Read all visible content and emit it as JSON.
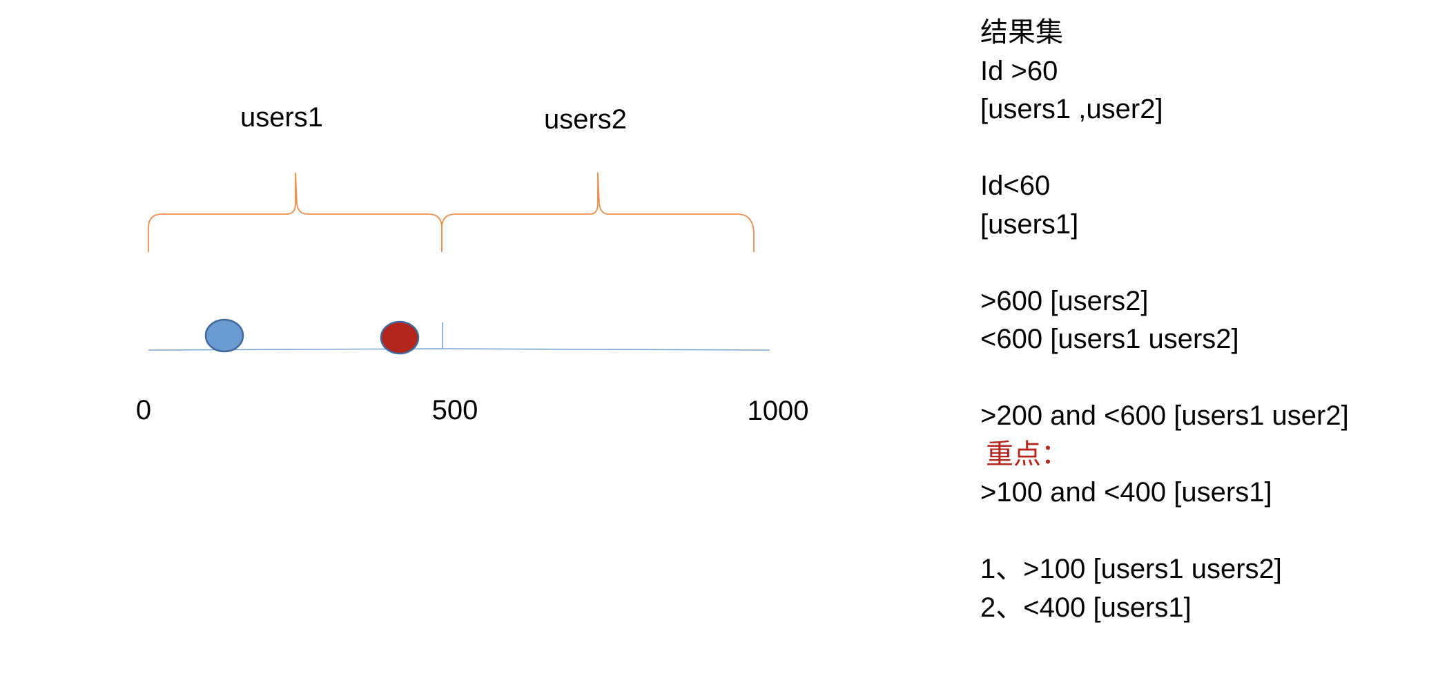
{
  "diagram": {
    "segments": [
      {
        "label": "users1",
        "start": 0,
        "end": 500
      },
      {
        "label": "users2",
        "start": 500,
        "end": 1000
      }
    ],
    "axis": {
      "ticks": [
        {
          "value": 0,
          "label": "0"
        },
        {
          "value": 500,
          "label": "500"
        },
        {
          "value": 1000,
          "label": "1000"
        }
      ]
    },
    "points": [
      {
        "name": "blue-point",
        "color": "#6a9bd1",
        "stroke": "#41699a"
      },
      {
        "name": "red-point",
        "color": "#b3251d",
        "stroke": "#41699a"
      }
    ],
    "colors": {
      "brace": "#ed8e4f",
      "axis": "#7aa5d4"
    }
  },
  "notes": {
    "lines": [
      {
        "text": "结果集",
        "style": "heading"
      },
      {
        "text": "Id >60",
        "style": "normal"
      },
      {
        "text": "[users1 ,user2]",
        "style": "normal"
      },
      {
        "text": "",
        "style": "blank"
      },
      {
        "text": "Id<60",
        "style": "normal"
      },
      {
        "text": "[users1]",
        "style": "normal"
      },
      {
        "text": "",
        "style": "blank"
      },
      {
        "text": ">600 [users2]",
        "style": "normal"
      },
      {
        "text": "<600 [users1 users2]",
        "style": "normal"
      },
      {
        "text": "",
        "style": "blank"
      },
      {
        "text": ">200 and <600 [users1 user2]",
        "style": "normal"
      },
      {
        "text": "重点：",
        "style": "highlight"
      },
      {
        "text": ">100 and <400 [users1]",
        "style": "normal"
      },
      {
        "text": "",
        "style": "blank"
      },
      {
        "text": "1、>100 [users1 users2]",
        "style": "normal"
      },
      {
        "text": "2、<400 [users1]",
        "style": "normal"
      }
    ],
    "highlight_color": "#b3251d"
  }
}
